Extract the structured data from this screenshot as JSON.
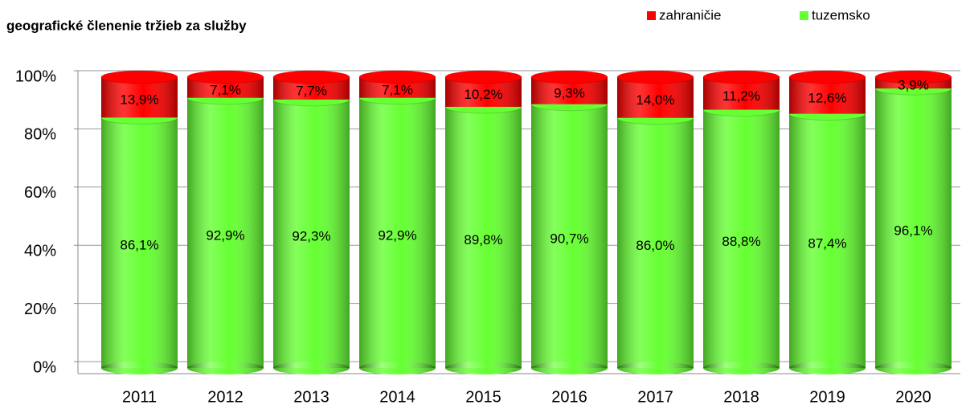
{
  "chart_data": {
    "type": "bar",
    "stacked": true,
    "title": "geografické členenie tržieb za služby",
    "categories": [
      "2011",
      "2012",
      "2013",
      "2014",
      "2015",
      "2016",
      "2017",
      "2018",
      "2019",
      "2020"
    ],
    "series": [
      {
        "name": "tuzemsko",
        "color": "#66ff33",
        "values": [
          86.1,
          92.9,
          92.3,
          92.9,
          89.8,
          90.7,
          86.0,
          88.8,
          87.4,
          96.1
        ],
        "value_labels": [
          "86,1%",
          "92,9%",
          "92,3%",
          "92,9%",
          "89,8%",
          "90,7%",
          "86,0%",
          "88,8%",
          "87,4%",
          "96,1%"
        ]
      },
      {
        "name": "zahraničie",
        "color": "#ff0000",
        "values": [
          13.9,
          7.1,
          7.7,
          7.1,
          10.2,
          9.3,
          14.0,
          11.2,
          12.6,
          3.9
        ],
        "value_labels": [
          "13,9%",
          "7,1%",
          "7,7%",
          "7,1%",
          "10,2%",
          "9,3%",
          "14,0%",
          "11,2%",
          "12,6%",
          "3,9%"
        ]
      }
    ],
    "ylim": [
      0,
      100
    ],
    "yticks": [
      {
        "value": 0,
        "label": "0%"
      },
      {
        "value": 20,
        "label": "20%"
      },
      {
        "value": 40,
        "label": "40%"
      },
      {
        "value": 60,
        "label": "60%"
      },
      {
        "value": 80,
        "label": "80%"
      },
      {
        "value": 100,
        "label": "100%"
      }
    ],
    "grid": true,
    "legend": "top"
  }
}
